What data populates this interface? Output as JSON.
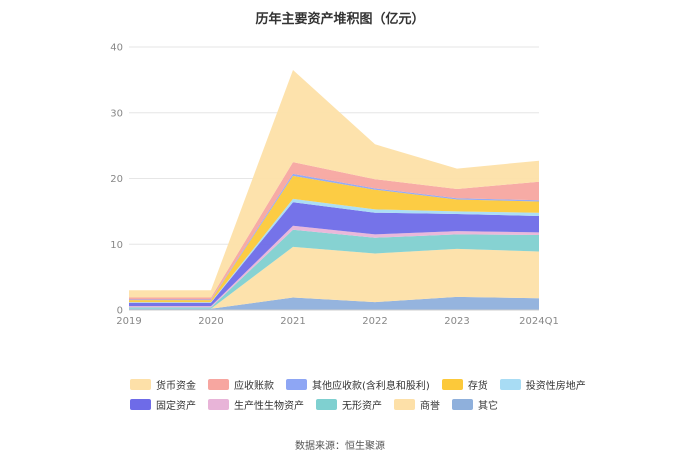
{
  "chart_data": {
    "type": "area",
    "title": "历年主要资产堆积图（亿元）",
    "categories": [
      "2019",
      "2020",
      "2021",
      "2022",
      "2023",
      "2024Q1"
    ],
    "ylim": [
      0,
      40
    ],
    "yticks": [
      0,
      10,
      20,
      30,
      40
    ],
    "grid": true,
    "legend_position": "bottom",
    "series": [
      {
        "name": "其它",
        "color": "#8fb0dc",
        "values": [
          0.2,
          0.2,
          1.9,
          1.2,
          2.0,
          1.8
        ]
      },
      {
        "name": "商誉",
        "color": "#fde0a8",
        "values": [
          0.0,
          0.0,
          7.7,
          7.4,
          7.3,
          7.1
        ]
      },
      {
        "name": "无形资产",
        "color": "#7fd0d0",
        "values": [
          0.2,
          0.2,
          2.6,
          2.4,
          2.2,
          2.5
        ]
      },
      {
        "name": "生产性生物资产",
        "color": "#e8b4d8",
        "values": [
          0.2,
          0.2,
          0.6,
          0.5,
          0.5,
          0.4
        ]
      },
      {
        "name": "固定资产",
        "color": "#6e6be8",
        "values": [
          0.5,
          0.5,
          3.6,
          3.3,
          2.6,
          2.5
        ]
      },
      {
        "name": "投资性房地产",
        "color": "#a8dcf4",
        "values": [
          0.1,
          0.1,
          0.5,
          0.5,
          0.4,
          0.5
        ]
      },
      {
        "name": "存货",
        "color": "#fcc93a",
        "values": [
          0.3,
          0.3,
          3.5,
          3.0,
          1.8,
          1.7
        ]
      },
      {
        "name": "其他应收款(含利息和股利)",
        "color": "#8ea6f4",
        "values": [
          0.1,
          0.1,
          0.3,
          0.2,
          0.2,
          0.2
        ]
      },
      {
        "name": "应收账款",
        "color": "#f7a6a0",
        "values": [
          0.3,
          0.3,
          1.8,
          1.4,
          1.4,
          2.8
        ]
      },
      {
        "name": "货币资金",
        "color": "#fde0a8",
        "values": [
          1.1,
          1.1,
          14.0,
          5.3,
          3.1,
          3.2
        ]
      }
    ],
    "legend_order": [
      "货币资金",
      "应收账款",
      "其他应收款(含利息和股利)",
      "存货",
      "投资性房地产",
      "固定资产",
      "生产性生物资产",
      "无形资产",
      "商誉",
      "其它"
    ]
  },
  "source": "数据来源：恒生聚源"
}
